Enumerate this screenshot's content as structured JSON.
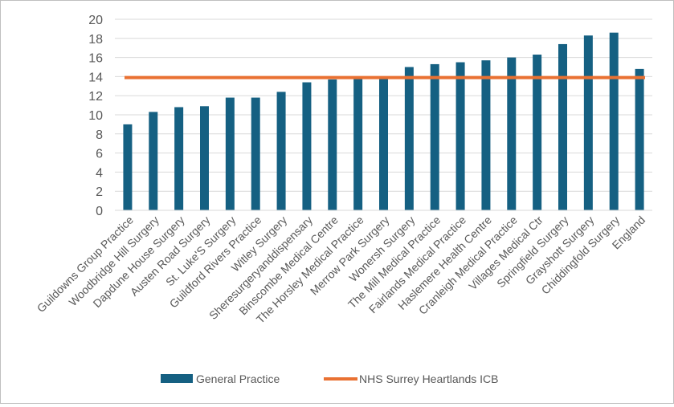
{
  "chart_data": {
    "type": "bar",
    "title": "",
    "xlabel": "",
    "ylabel": "",
    "ylim": [
      0,
      20
    ],
    "yticks": [
      0,
      2,
      4,
      6,
      8,
      10,
      12,
      14,
      16,
      18,
      20
    ],
    "grid": true,
    "legend_position": "bottom",
    "categories": [
      "Guildowns Group Practice",
      "Woodbridge Hill Surgery",
      "Dapdune House Surgery",
      "Austen Road Surgery",
      "St. Luke'S Surgery",
      "Guildford Rivers Practice",
      "Witley Surgery",
      "Sheresurgeryanddispensary",
      "Binscombe Medical Centre",
      "The Horsley Medical Practice",
      "Merrow Park Surgery",
      "Wonersh Surgery",
      "The Mill Medical Practice",
      "Fairlands Medical Practice",
      "Haslemere Health Centre",
      "Cranleigh Medical Practice",
      "Villages Medical Ctr",
      "Springfield Surgery",
      "Grayshott Surgery",
      "Chiddingfold Surgery",
      "England"
    ],
    "series": [
      {
        "name": "General Practice",
        "kind": "bar",
        "color": "#156082",
        "values": [
          9.0,
          10.3,
          10.8,
          10.9,
          11.8,
          11.8,
          12.4,
          13.4,
          13.7,
          13.8,
          13.9,
          15.0,
          15.3,
          15.5,
          15.7,
          16.0,
          16.3,
          17.4,
          18.3,
          18.6,
          14.8
        ]
      },
      {
        "name": "NHS Surrey Heartlands ICB",
        "kind": "line",
        "color": "#E97132",
        "value": 13.9
      }
    ]
  }
}
